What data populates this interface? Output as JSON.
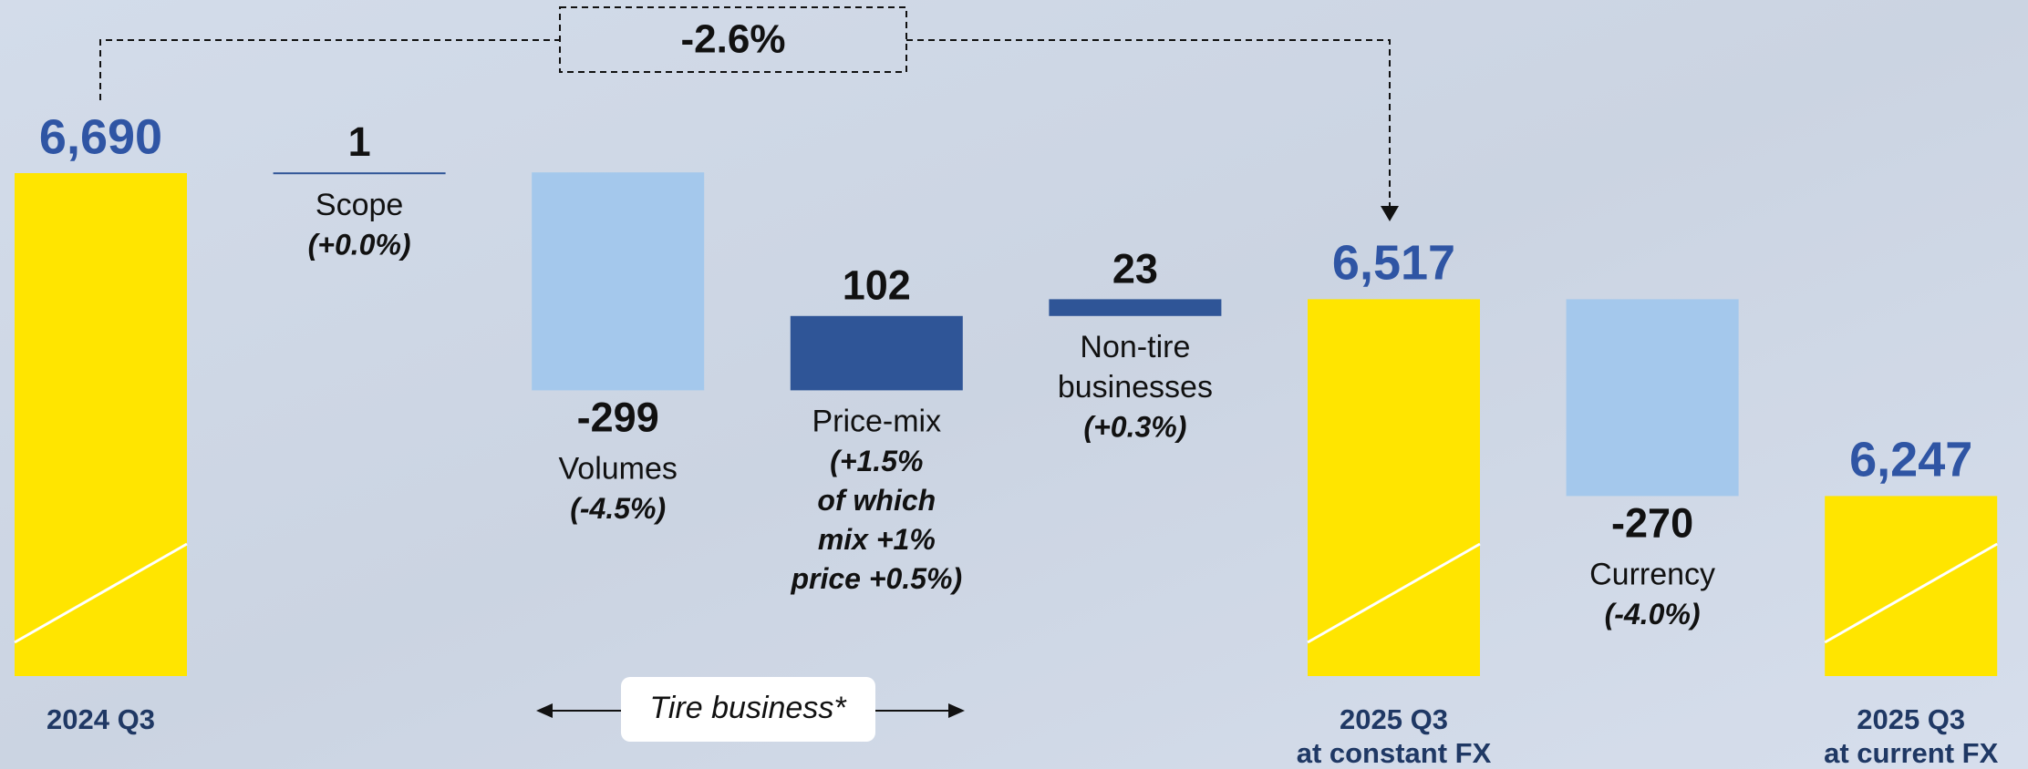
{
  "chart_data": {
    "type": "waterfall",
    "categories": [
      [
        "2024 Q3"
      ],
      [
        "Scope"
      ],
      [
        "Volumes"
      ],
      [
        "Price-mix"
      ],
      [
        "Non-tire",
        "businesses"
      ],
      [
        "2025 Q3",
        "at constant FX"
      ],
      [
        "Currency"
      ],
      [
        "2025 Q3",
        "at current FX"
      ]
    ],
    "values": [
      6690,
      1,
      -299,
      102,
      23,
      6517,
      -270,
      6247
    ],
    "value_labels": [
      "6,690",
      "1",
      "-299",
      "102",
      "23",
      "6,517",
      "-270",
      "6,247"
    ],
    "totals": [
      true,
      false,
      false,
      false,
      false,
      true,
      false,
      true
    ],
    "notes": [
      [],
      [
        "(+0.0%)"
      ],
      [
        "(-4.5%)"
      ],
      [
        "(+1.5%",
        "of which",
        "mix +1%",
        "price +0.5%)"
      ],
      [
        "(+0.3%)"
      ],
      [],
      [
        "(-4.0%)"
      ],
      []
    ],
    "colors": {
      "total": "#ffe500",
      "increase": "#2f5597",
      "decrease": "#a4c8ec"
    },
    "ylim": [
      6000,
      6700
    ],
    "annotations": {
      "change": "-2.6%",
      "group": "Tire business*"
    }
  }
}
